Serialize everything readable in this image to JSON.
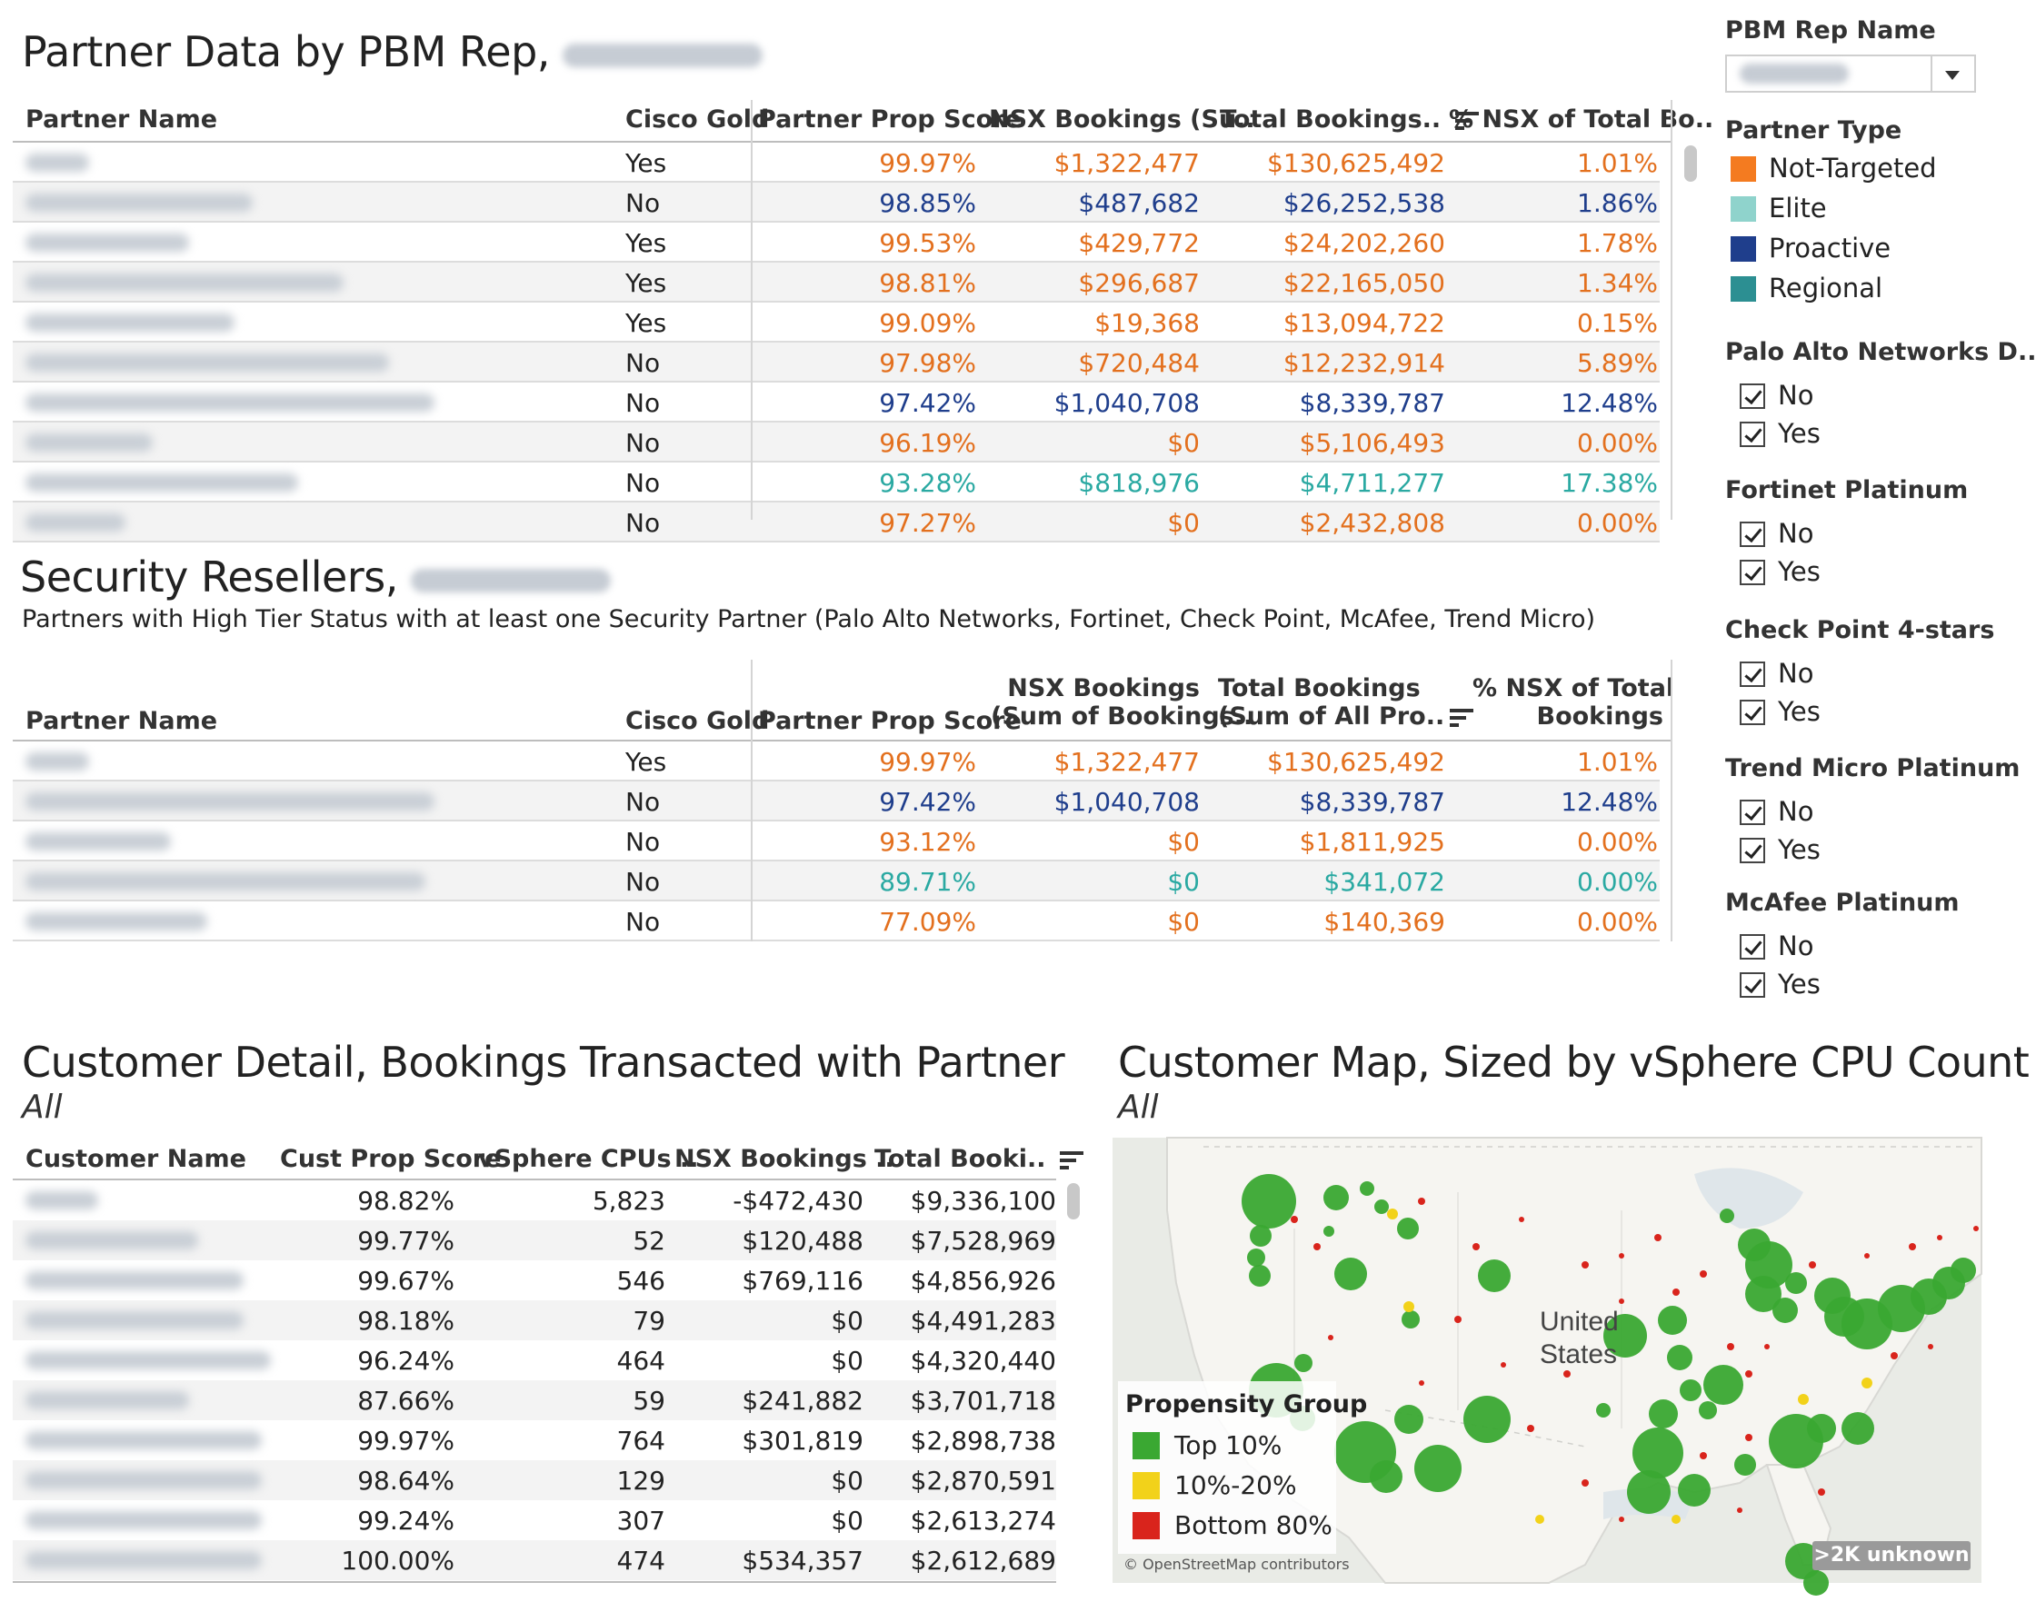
{
  "partner_section": {
    "title": "Partner Data by PBM Rep,",
    "columns": [
      "Partner Name",
      "Cisco Gold",
      "Partner Prop Score",
      "NSX Bookings (Su..",
      "Total Bookings..",
      "% NSX of Total Bo.."
    ],
    "rows": [
      {
        "gold": "Yes",
        "score": "99.97%",
        "nsx": "$1,322,477",
        "total": "$130,625,492",
        "pct": "1.01%",
        "color": "#e3701e"
      },
      {
        "gold": "No",
        "score": "98.85%",
        "nsx": "$487,682",
        "total": "$26,252,538",
        "pct": "1.86%",
        "color": "#1f3e8c"
      },
      {
        "gold": "Yes",
        "score": "99.53%",
        "nsx": "$429,772",
        "total": "$24,202,260",
        "pct": "1.78%",
        "color": "#e3701e"
      },
      {
        "gold": "Yes",
        "score": "98.81%",
        "nsx": "$296,687",
        "total": "$22,165,050",
        "pct": "1.34%",
        "color": "#e3701e"
      },
      {
        "gold": "Yes",
        "score": "99.09%",
        "nsx": "$19,368",
        "total": "$13,094,722",
        "pct": "0.15%",
        "color": "#e3701e"
      },
      {
        "gold": "No",
        "score": "97.98%",
        "nsx": "$720,484",
        "total": "$12,232,914",
        "pct": "5.89%",
        "color": "#e3701e"
      },
      {
        "gold": "No",
        "score": "97.42%",
        "nsx": "$1,040,708",
        "total": "$8,339,787",
        "pct": "12.48%",
        "color": "#1f3e8c"
      },
      {
        "gold": "No",
        "score": "96.19%",
        "nsx": "$0",
        "total": "$5,106,493",
        "pct": "0.00%",
        "color": "#e3701e"
      },
      {
        "gold": "No",
        "score": "93.28%",
        "nsx": "$818,976",
        "total": "$4,711,277",
        "pct": "17.38%",
        "color": "#2aa9a2"
      },
      {
        "gold": "No",
        "score": "97.27%",
        "nsx": "$0",
        "total": "$2,432,808",
        "pct": "0.00%",
        "color": "#e3701e"
      }
    ]
  },
  "security_section": {
    "title": "Security Resellers,",
    "subtitle": "Partners with High Tier Status with at least one Security Partner (Palo Alto Networks, Fortinet, Check Point, McAfee, Trend Micro)",
    "columns": {
      "name": "Partner Name",
      "gold": "Cisco Gold",
      "score": "Partner Prop Score",
      "nsx_1": "NSX Bookings",
      "nsx_2": "(Sum of Bookings..",
      "total_1": "Total Bookings",
      "total_2": "(Sum of All Pro..",
      "pct_1": "% NSX of Total",
      "pct_2": "Bookings"
    },
    "rows": [
      {
        "gold": "Yes",
        "score": "99.97%",
        "nsx": "$1,322,477",
        "total": "$130,625,492",
        "pct": "1.01%",
        "color": "#e3701e"
      },
      {
        "gold": "No",
        "score": "97.42%",
        "nsx": "$1,040,708",
        "total": "$8,339,787",
        "pct": "12.48%",
        "color": "#1f3e8c"
      },
      {
        "gold": "No",
        "score": "93.12%",
        "nsx": "$0",
        "total": "$1,811,925",
        "pct": "0.00%",
        "color": "#e3701e"
      },
      {
        "gold": "No",
        "score": "89.71%",
        "nsx": "$0",
        "total": "$341,072",
        "pct": "0.00%",
        "color": "#2aa9a2"
      },
      {
        "gold": "No",
        "score": "77.09%",
        "nsx": "$0",
        "total": "$140,369",
        "pct": "0.00%",
        "color": "#e3701e"
      }
    ]
  },
  "customer_section": {
    "title": "Customer Detail, Bookings Transacted with Partner",
    "filter_label": "All",
    "columns": [
      "Customer Name",
      "Cust Prop Score",
      "vSphere CPUs ..",
      "NSX Bookings ..",
      "Total Booki.."
    ],
    "rows": [
      {
        "score": "98.82%",
        "cpus": "5,823",
        "nsx": "-$472,430",
        "total": "$9,336,100"
      },
      {
        "score": "99.77%",
        "cpus": "52",
        "nsx": "$120,488",
        "total": "$7,528,969"
      },
      {
        "score": "99.67%",
        "cpus": "546",
        "nsx": "$769,116",
        "total": "$4,856,926"
      },
      {
        "score": "98.18%",
        "cpus": "79",
        "nsx": "$0",
        "total": "$4,491,283"
      },
      {
        "score": "96.24%",
        "cpus": "464",
        "nsx": "$0",
        "total": "$4,320,440"
      },
      {
        "score": "87.66%",
        "cpus": "59",
        "nsx": "$241,882",
        "total": "$3,701,718"
      },
      {
        "score": "99.97%",
        "cpus": "764",
        "nsx": "$301,819",
        "total": "$2,898,738"
      },
      {
        "score": "98.64%",
        "cpus": "129",
        "nsx": "$0",
        "total": "$2,870,591"
      },
      {
        "score": "99.24%",
        "cpus": "307",
        "nsx": "$0",
        "total": "$2,613,274"
      },
      {
        "score": "100.00%",
        "cpus": "474",
        "nsx": "$534,357",
        "total": "$2,612,689"
      }
    ]
  },
  "map_section": {
    "title": "Customer Map, Sized by vSphere CPU Count",
    "filter_label": "All",
    "country_label_1": "United",
    "country_label_2": "States",
    "legend_title": "Propensity Group",
    "legend": [
      {
        "label": "Top 10%",
        "color": "#3aa832"
      },
      {
        "label": "10%-20%",
        "color": "#f2d21a"
      },
      {
        "label": "Bottom 80%",
        "color": "#d9241c"
      }
    ],
    "attribution": "© OpenStreetMap contributors",
    "unknown_badge": ">2K unknown"
  },
  "sidebar": {
    "rep_label": "PBM Rep Name",
    "partner_type_label": "Partner Type",
    "partner_types": [
      {
        "label": "Not-Targeted",
        "color": "#f47b20"
      },
      {
        "label": "Elite",
        "color": "#8fd3cc"
      },
      {
        "label": "Proactive",
        "color": "#1f3e8c"
      },
      {
        "label": "Regional",
        "color": "#2c8f92"
      }
    ],
    "filters": [
      {
        "label": "Palo Alto Networks D..",
        "options": [
          "No",
          "Yes"
        ]
      },
      {
        "label": "Fortinet Platinum",
        "options": [
          "No",
          "Yes"
        ]
      },
      {
        "label": "Check Point 4-stars",
        "options": [
          "No",
          "Yes"
        ]
      },
      {
        "label": "Trend Micro Platinum",
        "options": [
          "No",
          "Yes"
        ]
      },
      {
        "label": "McAfee Platinum",
        "options": [
          "No",
          "Yes"
        ]
      }
    ]
  }
}
